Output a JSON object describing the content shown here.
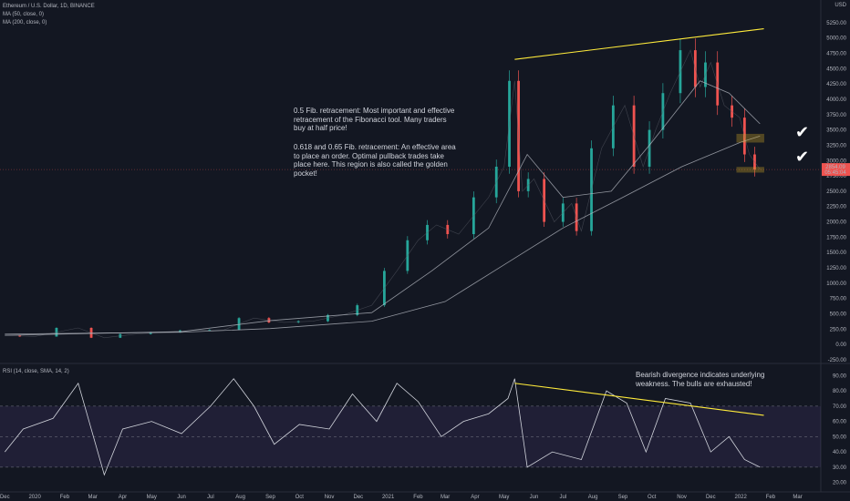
{
  "header": {
    "symbol": "Ethereum / U.S. Dollar, 1D, BINANCE",
    "ma50": "MA (50, close, 0)",
    "ma200": "MA (200, close, 0)",
    "rsi": "RSI (14, close, SMA, 14, 2)",
    "currency": "USD"
  },
  "annotations": {
    "fib_half": "0.5 Fib. retracement: Most important and effective retracement of the Fibonacci tool. Many traders buy at half price!",
    "fib_golden": "0.618 and 0.65 Fib. retracement: An effective area to place an order. Optimal pullback trades take place here. This region is also called the golden pocket!",
    "divergence": "Bearish divergence indicates underlying weakness. The bulls are exhausted!",
    "check1": "✔",
    "check2": "✔"
  },
  "price_label": {
    "price": "2854.09",
    "time": "05:45:04",
    "value": 2854
  },
  "colors": {
    "background": "#131722",
    "up": "#26a69a",
    "down": "#ef5350",
    "trendline": "#ffeb3b",
    "ma": "#b2b5be",
    "rsi_line": "#d1d4dc",
    "rsi_band": "#7e57c2",
    "fib_zone": "#c9a227"
  },
  "chart_data": [
    {
      "type": "line",
      "subtype": "candlestick",
      "title": "Ethereum / U.S. Dollar, 1D, BINANCE",
      "ylabel": "USD",
      "ylim": [
        -250,
        5500
      ],
      "y_ticks": [
        5250,
        5000,
        4750,
        4500,
        4250,
        4000,
        3750,
        3500,
        3250,
        3000,
        2750,
        2500,
        2250,
        2000,
        1750,
        1500,
        1250,
        1000,
        750,
        500,
        250,
        0,
        -250
      ],
      "y_tick_labels": [
        "5250.00",
        "5000.00",
        "4750.00",
        "4500.00",
        "4250.00",
        "4000.00",
        "3750.00",
        "3500.00",
        "3250.00",
        "3000.00",
        "2750.00",
        "2500.00",
        "2250.00",
        "2000.00",
        "1750.00",
        "1500.00",
        "1250.00",
        "1000.00",
        "750.00",
        "500.00",
        "250.00",
        "0.00",
        "-250.00"
      ],
      "x_labels": [
        "Dec",
        "2020",
        "Feb",
        "Mar",
        "Apr",
        "May",
        "Jun",
        "Jul",
        "Aug",
        "Sep",
        "Oct",
        "Nov",
        "Dec",
        "2021",
        "Feb",
        "Mar",
        "Apr",
        "May",
        "Jun",
        "Jul",
        "Aug",
        "Sep",
        "Oct",
        "Nov",
        "Dec",
        "2022",
        "Feb",
        "Mar"
      ],
      "series": [
        {
          "name": "ETHUSD",
          "x": [
            "2019-12-01",
            "2020-01-01",
            "2020-02-15",
            "2020-03-13",
            "2020-04-15",
            "2020-05-15",
            "2020-06-15",
            "2020-07-15",
            "2020-08-15",
            "2020-09-15",
            "2020-10-15",
            "2020-11-15",
            "2020-12-15",
            "2021-01-10",
            "2021-02-01",
            "2021-02-20",
            "2021-03-15",
            "2021-04-15",
            "2021-05-01",
            "2021-05-12",
            "2021-05-20",
            "2021-06-01",
            "2021-06-22",
            "2021-07-10",
            "2021-07-20",
            "2021-08-10",
            "2021-09-03",
            "2021-09-22",
            "2021-10-05",
            "2021-10-20",
            "2021-11-10",
            "2021-11-20",
            "2021-12-01",
            "2021-12-15",
            "2021-12-31",
            "2022-01-10",
            "2022-01-21"
          ],
          "values": [
            150,
            130,
            270,
            110,
            170,
            200,
            230,
            240,
            430,
            360,
            380,
            480,
            640,
            1200,
            1700,
            1950,
            1800,
            2400,
            2900,
            4300,
            2500,
            2700,
            2000,
            2300,
            1850,
            3200,
            3900,
            2900,
            3500,
            4100,
            4800,
            4200,
            4600,
            3900,
            3700,
            3100,
            2854
          ]
        },
        {
          "name": "MA (50, close, 0)",
          "x": [
            "2019-12-01",
            "2020-06-01",
            "2020-09-01",
            "2020-12-15",
            "2021-02-15",
            "2021-04-15",
            "2021-05-25",
            "2021-07-01",
            "2021-08-20",
            "2021-10-01",
            "2021-11-20",
            "2021-12-20",
            "2022-01-21"
          ],
          "values": [
            150,
            210,
            390,
            520,
            1200,
            1900,
            3100,
            2400,
            2500,
            3300,
            4300,
            4100,
            3600
          ]
        },
        {
          "name": "MA (200, close, 0)",
          "x": [
            "2019-12-01",
            "2020-06-01",
            "2020-09-01",
            "2020-12-15",
            "2021-03-01",
            "2021-05-01",
            "2021-07-01",
            "2021-09-01",
            "2021-11-01",
            "2022-01-01",
            "2022-01-21"
          ],
          "values": [
            170,
            200,
            260,
            380,
            700,
            1300,
            1900,
            2400,
            2900,
            3300,
            3400
          ]
        }
      ],
      "trendline": {
        "from": {
          "x": "2021-05-12",
          "y": 4650
        },
        "to": {
          "x": "2022-01-25",
          "y": 5150
        }
      },
      "zones": [
        {
          "y_from": 3300,
          "y_to": 3430,
          "x_from": "2021-12-28",
          "x_to": "2022-01-25"
        },
        {
          "y_from": 2810,
          "y_to": 2890,
          "x_from": "2021-12-28",
          "x_to": "2022-01-25"
        }
      ]
    },
    {
      "type": "line",
      "title": "RSI (14, close, SMA, 14, 2)",
      "ylim": [
        15,
        95
      ],
      "y_ticks": [
        90,
        80,
        70,
        60,
        50,
        40,
        30,
        20
      ],
      "y_tick_labels": [
        "90.00",
        "80.00",
        "70.00",
        "60.00",
        "50.00",
        "40.00",
        "30.00",
        "20.00"
      ],
      "bands": [
        70,
        50,
        30
      ],
      "series": [
        {
          "name": "RSI",
          "x": [
            "2019-12-01",
            "2019-12-20",
            "2020-01-20",
            "2020-02-15",
            "2020-03-13",
            "2020-04-01",
            "2020-05-01",
            "2020-06-01",
            "2020-07-01",
            "2020-07-25",
            "2020-08-15",
            "2020-09-05",
            "2020-10-01",
            "2020-11-01",
            "2020-11-25",
            "2020-12-20",
            "2021-01-10",
            "2021-02-01",
            "2021-02-25",
            "2021-03-20",
            "2021-04-15",
            "2021-05-05",
            "2021-05-12",
            "2021-05-25",
            "2021-06-20",
            "2021-07-20",
            "2021-08-15",
            "2021-09-05",
            "2021-09-25",
            "2021-10-15",
            "2021-11-10",
            "2021-12-01",
            "2021-12-20",
            "2022-01-05",
            "2022-01-21"
          ],
          "values": [
            40,
            55,
            62,
            85,
            25,
            55,
            60,
            52,
            70,
            88,
            70,
            45,
            58,
            55,
            78,
            60,
            85,
            73,
            50,
            60,
            65,
            75,
            88,
            30,
            40,
            35,
            80,
            72,
            40,
            75,
            72,
            40,
            50,
            35,
            30
          ]
        }
      ],
      "trendline": {
        "from": {
          "x": "2021-05-12",
          "y": 85
        },
        "to": {
          "x": "2022-01-25",
          "y": 64
        }
      }
    }
  ]
}
